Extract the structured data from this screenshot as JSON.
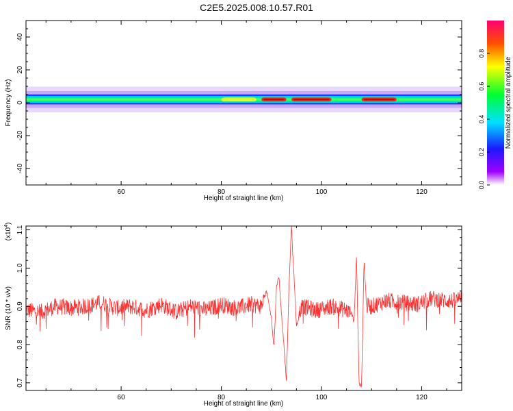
{
  "title": "C2E5.2025.008.10.57.R01",
  "chart_data": [
    {
      "type": "heatmap",
      "xlabel": "Height of straight line (km)",
      "ylabel": "Frequency (Hz)",
      "xlim": [
        41,
        128
      ],
      "ylim": [
        -50,
        50
      ],
      "xticks": [
        60,
        80,
        100,
        120
      ],
      "yticks": [
        -40,
        -20,
        0,
        20,
        40
      ],
      "band_center_hz": 2,
      "band_halfwidth_hz": 3,
      "hot_segments_km": [
        [
          80,
          87,
          0.65
        ],
        [
          88,
          93,
          0.9
        ],
        [
          94,
          102,
          0.95
        ],
        [
          108,
          115,
          0.95
        ]
      ],
      "colorbar": {
        "label": "Normalized spectral amplitude",
        "range": [
          0,
          1
        ],
        "ticks": [
          "0.0",
          "0.2",
          "0.4",
          "0.6",
          "0.8"
        ]
      }
    },
    {
      "type": "line",
      "xlabel": "Height of straight line (km)",
      "ylabel": "SNR (10 * v/v)",
      "multiplier": "(x10",
      "multiplier_exp": "4",
      "multiplier_close": ")",
      "xlim": [
        41,
        128
      ],
      "ylim": [
        0.68,
        1.11
      ],
      "xticks": [
        60,
        80,
        100,
        120
      ],
      "yticks": [
        "0.7",
        "0.8",
        "0.9",
        "1.0",
        "1.1"
      ],
      "color": "#ff3030",
      "series": [
        {
          "x": [
            41,
            44,
            47,
            50,
            53,
            56,
            59,
            62,
            65,
            68,
            71,
            74,
            77,
            80,
            83,
            86,
            88,
            89,
            90,
            90.5,
            91,
            91.5,
            92,
            92.5,
            93,
            93.5,
            94,
            94.5,
            95,
            96,
            99,
            102,
            105,
            106,
            106.5,
            107,
            107.5,
            108,
            108.5,
            109,
            110,
            113,
            116,
            119,
            122,
            125,
            127,
            128
          ],
          "y": [
            0.89,
            0.885,
            0.9,
            0.895,
            0.9,
            0.91,
            0.895,
            0.9,
            0.89,
            0.905,
            0.885,
            0.9,
            0.89,
            0.905,
            0.895,
            0.905,
            0.9,
            0.94,
            0.87,
            0.79,
            0.95,
            0.98,
            0.88,
            0.8,
            0.7,
            0.95,
            1.11,
            0.98,
            0.85,
            0.9,
            0.89,
            0.9,
            0.89,
            0.88,
            0.86,
            1.03,
            0.7,
            0.69,
            1.02,
            0.9,
            0.9,
            0.915,
            0.91,
            0.905,
            0.92,
            0.915,
            0.915,
            0.93
          ]
        }
      ]
    }
  ]
}
